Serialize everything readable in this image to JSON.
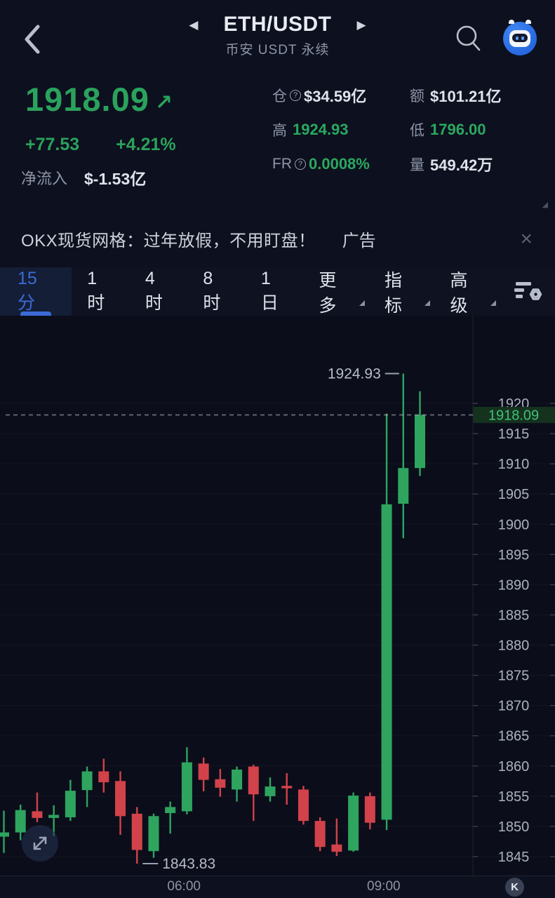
{
  "header": {
    "title": "ETH/USDT",
    "subtitle": "币安 USDT 永续",
    "prev_symbol_icon": "◀",
    "next_symbol_icon": "▶"
  },
  "ticker": {
    "last_price": "1918.09",
    "trend_arrow": "↗",
    "change": "+77.53",
    "change_pct": "+4.21%",
    "netflow_label": "净流入",
    "netflow_value": "$-1.53亿",
    "stats_rows": [
      [
        {
          "label": "仓",
          "info": true,
          "value": "$34.59亿",
          "style": "white"
        },
        {
          "label": "额",
          "info": false,
          "value": "$101.21亿",
          "style": "white"
        }
      ],
      [
        {
          "label": "高",
          "info": false,
          "value": "1924.93",
          "style": "green"
        },
        {
          "label": "低",
          "info": false,
          "value": "1796.00",
          "style": "green"
        }
      ],
      [
        {
          "label": "FR",
          "info": true,
          "value": "0.0008%",
          "style": "green"
        },
        {
          "label": "量",
          "info": false,
          "value": "549.42万",
          "style": "white"
        }
      ]
    ],
    "corner_triangle": "◢"
  },
  "ad_banner": {
    "text": "OKX现货网格：过年放假，不用盯盘！",
    "tag": "广告",
    "close_icon": "×"
  },
  "toolbar": {
    "tabs": [
      {
        "label": "15分",
        "active": true,
        "dropdown": false
      },
      {
        "label": "1时",
        "active": false,
        "dropdown": false
      },
      {
        "label": "4时",
        "active": false,
        "dropdown": false
      },
      {
        "label": "8时",
        "active": false,
        "dropdown": false
      },
      {
        "label": "1日",
        "active": false,
        "dropdown": false
      },
      {
        "label": "更多",
        "active": false,
        "dropdown": true
      },
      {
        "label": "指标",
        "active": false,
        "dropdown": true
      },
      {
        "label": "高级",
        "active": false,
        "dropdown": true
      }
    ]
  },
  "chart_data": {
    "type": "candlestick",
    "symbol": "ETH/USDT",
    "interval": "15分",
    "up_color": "#2fa45f",
    "down_color": "#d2424a",
    "last_price": 1918.09,
    "last_price_label": "1918.09",
    "y_ticks": [
      1920,
      1915,
      1910,
      1905,
      1900,
      1895,
      1890,
      1885,
      1880,
      1875,
      1870,
      1865,
      1860,
      1855,
      1850,
      1845
    ],
    "x_ticks": [
      {
        "label": "06:00",
        "candle_index": 11
      },
      {
        "label": "09:00",
        "candle_index": 23
      }
    ],
    "high_annotation": {
      "label": "1924.93",
      "value": 1924.93,
      "candle_index": 24
    },
    "low_annotation": {
      "label": "1843.83",
      "value": 1843.83,
      "candle_index": 8
    },
    "ohlc": [
      {
        "o": 1848.3,
        "h": 1852.6,
        "l": 1845.6,
        "c": 1849.0
      },
      {
        "o": 1849.0,
        "h": 1853.6,
        "l": 1847.7,
        "c": 1852.7
      },
      {
        "o": 1852.5,
        "h": 1855.6,
        "l": 1850.7,
        "c": 1851.4
      },
      {
        "o": 1851.4,
        "h": 1853.5,
        "l": 1848.4,
        "c": 1851.9
      },
      {
        "o": 1851.5,
        "h": 1857.7,
        "l": 1850.9,
        "c": 1855.9
      },
      {
        "o": 1856.0,
        "h": 1859.9,
        "l": 1853.2,
        "c": 1859.1
      },
      {
        "o": 1859.1,
        "h": 1861.2,
        "l": 1855.6,
        "c": 1857.3
      },
      {
        "o": 1857.5,
        "h": 1859.1,
        "l": 1848.6,
        "c": 1851.7
      },
      {
        "o": 1852.1,
        "h": 1853.2,
        "l": 1843.83,
        "c": 1846.1
      },
      {
        "o": 1845.9,
        "h": 1852.1,
        "l": 1844.8,
        "c": 1851.7
      },
      {
        "o": 1852.2,
        "h": 1854.1,
        "l": 1848.8,
        "c": 1853.2
      },
      {
        "o": 1852.5,
        "h": 1863.1,
        "l": 1852.0,
        "c": 1860.6
      },
      {
        "o": 1860.4,
        "h": 1861.4,
        "l": 1855.8,
        "c": 1857.7
      },
      {
        "o": 1857.8,
        "h": 1859.5,
        "l": 1854.9,
        "c": 1856.4
      },
      {
        "o": 1856.1,
        "h": 1859.9,
        "l": 1854.1,
        "c": 1859.4
      },
      {
        "o": 1859.9,
        "h": 1860.2,
        "l": 1850.9,
        "c": 1855.3
      },
      {
        "o": 1855.0,
        "h": 1858.1,
        "l": 1854.1,
        "c": 1856.6
      },
      {
        "o": 1856.7,
        "h": 1858.8,
        "l": 1853.6,
        "c": 1856.3
      },
      {
        "o": 1856.1,
        "h": 1856.7,
        "l": 1850.3,
        "c": 1850.9
      },
      {
        "o": 1850.9,
        "h": 1851.5,
        "l": 1845.9,
        "c": 1846.6
      },
      {
        "o": 1847.0,
        "h": 1851.3,
        "l": 1845.1,
        "c": 1845.8
      },
      {
        "o": 1846.0,
        "h": 1855.6,
        "l": 1845.8,
        "c": 1855.1
      },
      {
        "o": 1855.0,
        "h": 1855.6,
        "l": 1849.5,
        "c": 1850.6
      },
      {
        "o": 1851.1,
        "h": 1918.3,
        "l": 1849.4,
        "c": 1903.3
      },
      {
        "o": 1903.4,
        "h": 1924.93,
        "l": 1897.7,
        "c": 1909.3
      },
      {
        "o": 1909.3,
        "h": 1922.0,
        "l": 1908.0,
        "c": 1918.09
      }
    ]
  },
  "colors": {
    "up_green": "#2fa45f",
    "down_red": "#d2424a",
    "tab_active_blue": "#3b6bd8",
    "price_tag_bg": "#15321f",
    "price_tag_text": "#41c178"
  }
}
